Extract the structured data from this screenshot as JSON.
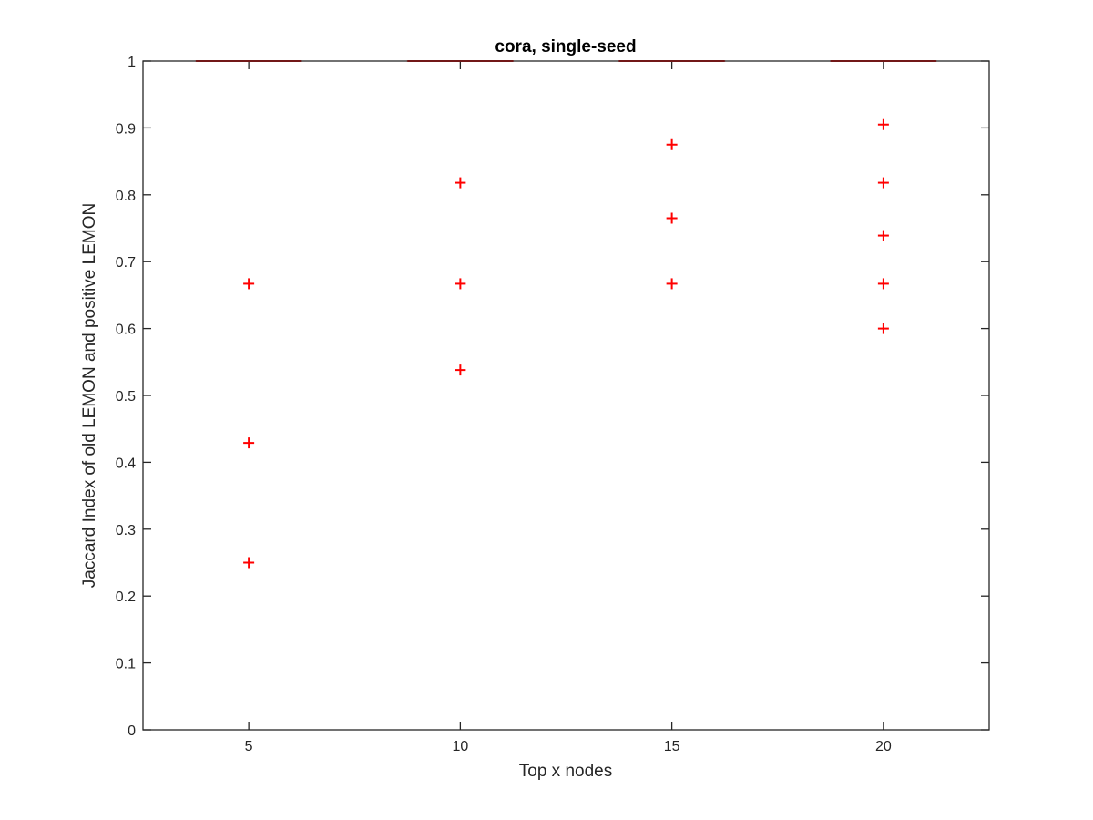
{
  "chart_data": {
    "type": "box",
    "title": "cora, single-seed",
    "xlabel": "Top x nodes",
    "ylabel": "Jaccard Index of old LEMON and positive LEMON",
    "xlim": [
      2.5,
      22.5
    ],
    "ylim": [
      0,
      1
    ],
    "xticks": [
      5,
      10,
      15,
      20
    ],
    "yticks": [
      0,
      0.1,
      0.2,
      0.3,
      0.4,
      0.5,
      0.6,
      0.7,
      0.8,
      0.9,
      1
    ],
    "ytick_labels": [
      "0",
      "0.1",
      "0.2",
      "0.3",
      "0.4",
      "0.5",
      "0.6",
      "0.7",
      "0.8",
      "0.9",
      "1"
    ],
    "box_color": "#ff0000",
    "groups": [
      {
        "x": 5,
        "median": 1,
        "q1": 1,
        "q3": 1,
        "outliers": [
          0.667,
          0.429,
          0.25
        ]
      },
      {
        "x": 10,
        "median": 1,
        "q1": 1,
        "q3": 1,
        "outliers": [
          0.818,
          0.667,
          0.538
        ]
      },
      {
        "x": 15,
        "median": 1,
        "q1": 1,
        "q3": 1,
        "outliers": [
          0.875,
          0.765,
          0.667
        ]
      },
      {
        "x": 20,
        "median": 1,
        "q1": 1,
        "q3": 1,
        "outliers": [
          0.905,
          0.818,
          0.739,
          0.667,
          0.6
        ]
      }
    ],
    "grid": false,
    "legend": "none"
  }
}
